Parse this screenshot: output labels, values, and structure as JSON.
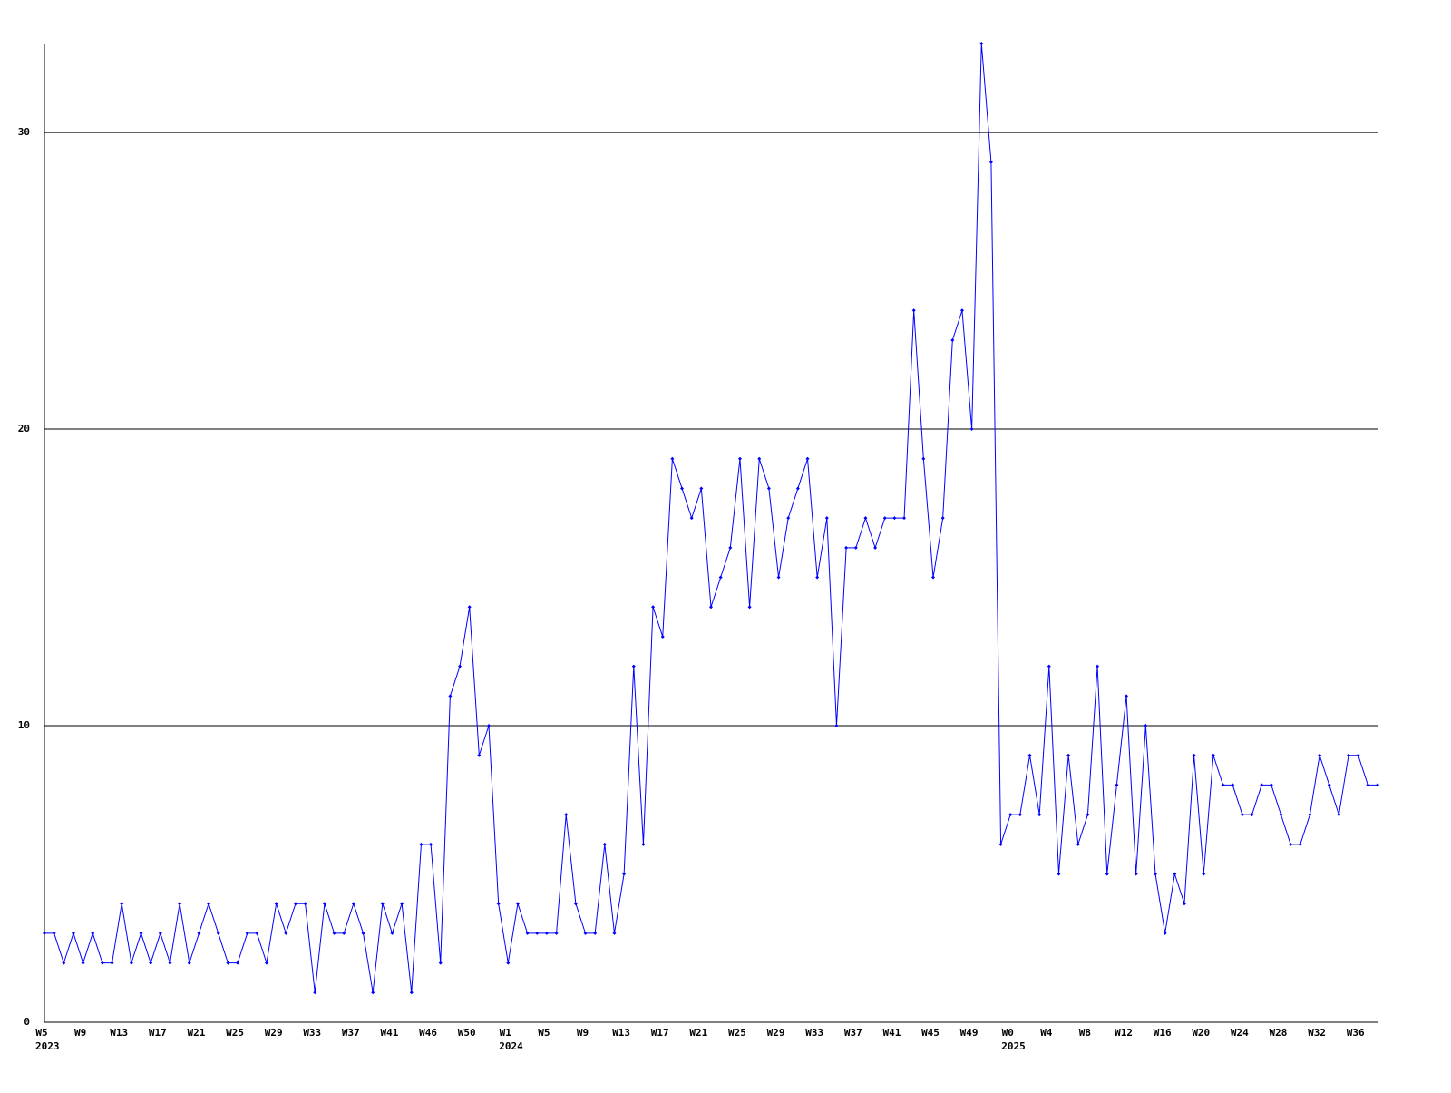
{
  "chart_data": {
    "type": "line",
    "categories": [
      "W5",
      null,
      null,
      null,
      "W9",
      null,
      null,
      null,
      "W13",
      null,
      null,
      null,
      "W17",
      null,
      null,
      null,
      "W21",
      null,
      null,
      null,
      "W25",
      null,
      null,
      null,
      "W29",
      null,
      null,
      null,
      "W33",
      null,
      null,
      null,
      "W37",
      null,
      null,
      null,
      "W41",
      null,
      null,
      null,
      "W46",
      null,
      null,
      null,
      "W50",
      null,
      null,
      null,
      "W1",
      null,
      null,
      null,
      "W5",
      null,
      null,
      null,
      "W9",
      null,
      null,
      null,
      "W13",
      null,
      null,
      null,
      "W17",
      null,
      null,
      null,
      "W21",
      null,
      null,
      null,
      "W25",
      null,
      null,
      null,
      "W29",
      null,
      null,
      null,
      "W33",
      null,
      null,
      null,
      "W37",
      null,
      null,
      null,
      "W41",
      null,
      null,
      null,
      "W45",
      null,
      null,
      null,
      "W49",
      null,
      null,
      null,
      "W0",
      null,
      null,
      null,
      "W4",
      null,
      null,
      null,
      "W8",
      null,
      null,
      null,
      "W12",
      null,
      null,
      null,
      "W16",
      null,
      null,
      null,
      "W20",
      null,
      null,
      null,
      "W24",
      null,
      null,
      null,
      "W28",
      null,
      null,
      null,
      "W32",
      null,
      null,
      null,
      "W36",
      null,
      null
    ],
    "years": [
      "2023",
      null,
      null,
      null,
      null,
      null,
      null,
      null,
      null,
      null,
      null,
      null,
      null,
      null,
      null,
      null,
      null,
      null,
      null,
      null,
      null,
      null,
      null,
      null,
      null,
      null,
      null,
      null,
      null,
      null,
      null,
      null,
      null,
      null,
      null,
      null,
      null,
      null,
      null,
      null,
      null,
      null,
      null,
      null,
      null,
      null,
      null,
      null,
      "2024",
      null,
      null,
      null,
      null,
      null,
      null,
      null,
      null,
      null,
      null,
      null,
      null,
      null,
      null,
      null,
      null,
      null,
      null,
      null,
      null,
      null,
      null,
      null,
      null,
      null,
      null,
      null,
      null,
      null,
      null,
      null,
      null,
      null,
      null,
      null,
      null,
      null,
      null,
      null,
      null,
      null,
      null,
      null,
      null,
      null,
      null,
      null,
      null,
      null,
      null,
      null,
      "2025",
      null,
      null,
      null,
      null,
      null,
      null,
      null,
      null,
      null,
      null,
      null,
      null,
      null,
      null,
      null,
      null,
      null,
      null,
      null,
      null,
      null,
      null,
      null,
      null,
      null,
      null,
      null,
      null,
      null,
      null,
      null,
      null,
      null,
      null,
      null,
      null,
      null,
      null
    ],
    "series": [
      {
        "color": "#0000ff",
        "values": [
          3,
          3,
          2,
          3,
          2,
          3,
          2,
          2,
          4,
          2,
          3,
          2,
          3,
          2,
          4,
          2,
          3,
          4,
          3,
          2,
          2,
          3,
          3,
          2,
          4,
          3,
          4,
          4,
          1,
          4,
          3,
          3,
          4,
          3,
          1,
          4,
          3,
          4,
          1,
          6,
          6,
          2,
          11,
          12,
          14,
          9,
          10,
          4,
          2,
          4,
          3,
          3,
          3,
          3,
          7,
          4,
          3,
          3,
          6,
          3,
          5,
          12,
          6,
          14,
          13,
          19,
          18,
          17,
          18,
          14,
          15,
          16,
          19,
          14,
          19,
          18,
          15,
          17,
          18,
          19,
          15,
          17,
          10,
          16,
          16,
          17,
          16,
          17,
          17,
          17,
          24,
          19,
          15,
          17,
          23,
          24,
          20,
          33,
          29,
          6,
          7,
          7,
          9,
          7,
          12,
          5,
          9,
          6,
          7,
          12,
          5,
          8,
          11,
          5,
          10,
          5,
          3,
          5,
          4,
          9,
          5,
          9,
          8,
          8,
          7,
          7,
          8,
          8,
          7,
          6,
          6,
          7,
          9,
          8,
          7,
          9,
          9,
          8,
          8
        ]
      }
    ],
    "ylim": [
      0,
      33
    ],
    "yticks": [
      0,
      10,
      20,
      30
    ],
    "grid": true
  }
}
